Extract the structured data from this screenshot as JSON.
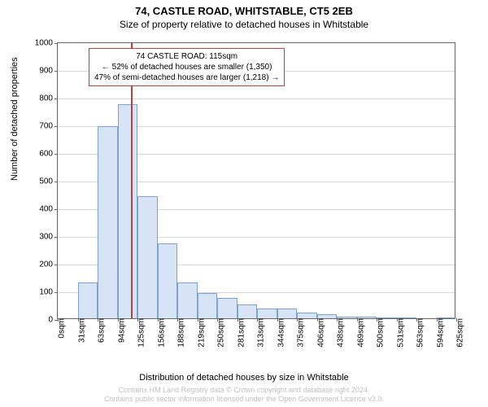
{
  "title_main": "74, CASTLE ROAD, WHITSTABLE, CT5 2EB",
  "title_sub": "Size of property relative to detached houses in Whitstable",
  "ylabel": "Number of detached properties",
  "xlabel": "Distribution of detached houses by size in Whitstable",
  "footer_line1": "Contains HM Land Registry data © Crown copyright and database right 2024.",
  "footer_line2": "Contains public sector information licensed under the Open Government Licence v3.0.",
  "chart": {
    "type": "histogram",
    "background_color": "#ffffff",
    "grid_color": "#d9d9d9",
    "axis_color": "#666666",
    "bar_fill": "#d6e4f5",
    "bar_border": "#7da3d1",
    "bar_border_width": 1,
    "ylim": [
      0,
      1000
    ],
    "ytick_step": 100,
    "yticks": [
      0,
      100,
      200,
      300,
      400,
      500,
      600,
      700,
      800,
      900,
      1000
    ],
    "xlim": [
      0,
      625
    ],
    "bin_width": 31.25,
    "xtick_labels": [
      "0sqm",
      "31sqm",
      "63sqm",
      "94sqm",
      "125sqm",
      "156sqm",
      "188sqm",
      "219sqm",
      "250sqm",
      "281sqm",
      "313sqm",
      "344sqm",
      "375sqm",
      "406sqm",
      "438sqm",
      "469sqm",
      "500sqm",
      "531sqm",
      "563sqm",
      "594sqm",
      "625sqm"
    ],
    "values": [
      0,
      130,
      695,
      775,
      440,
      270,
      130,
      90,
      75,
      50,
      35,
      35,
      20,
      15,
      5,
      5,
      2,
      2,
      0,
      2
    ],
    "label_fontsize": 10,
    "axis_label_fontsize": 11,
    "title_fontsize": 13
  },
  "marker": {
    "x_value": 115,
    "line_color": "#c04040",
    "line_width": 2,
    "callout_border": "#c04040",
    "callout_bg": "#ffffff",
    "callout_lines": [
      "74 CASTLE ROAD: 115sqm",
      "← 52% of detached houses are smaller (1,350)",
      "47% of semi-detached houses are larger (1,218) →"
    ]
  }
}
